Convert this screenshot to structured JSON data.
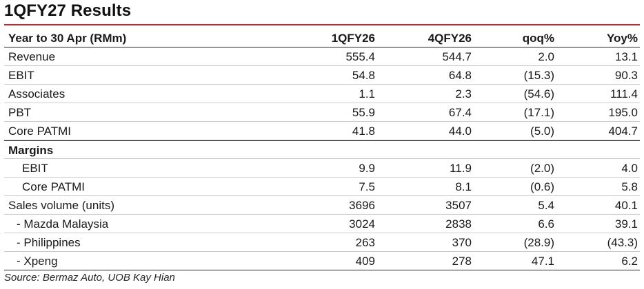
{
  "title": "1QFY27 Results",
  "header": {
    "label": "Year to 30 Apr (RMm)",
    "col1": "1QFY26",
    "col2": "4QFY26",
    "col3": "qoq%",
    "col4": "Yoy%"
  },
  "rows": [
    {
      "label": "Revenue",
      "v1": "555.4",
      "v2": "544.7",
      "v3": "2.0",
      "v4": "13.1"
    },
    {
      "label": "EBIT",
      "v1": "54.8",
      "v2": "64.8",
      "v3": "(15.3)",
      "v4": "90.3"
    },
    {
      "label": "Associates",
      "v1": "1.1",
      "v2": "2.3",
      "v3": "(54.6)",
      "v4": "111.4"
    },
    {
      "label": "PBT",
      "v1": "55.9",
      "v2": "67.4",
      "v3": "(17.1)",
      "v4": "195.0"
    },
    {
      "label": "Core PATMI",
      "v1": "41.8",
      "v2": "44.0",
      "v3": "(5.0)",
      "v4": "404.7"
    }
  ],
  "margins": {
    "label": "Margins",
    "rows": [
      {
        "label": "EBIT",
        "v1": "9.9",
        "v2": "11.9",
        "v3": "(2.0)",
        "v4": "4.0"
      },
      {
        "label": "Core PATMI",
        "v1": "7.5",
        "v2": "8.1",
        "v3": "(0.6)",
        "v4": "5.8"
      }
    ]
  },
  "sales": {
    "label": "Sales volume (units)",
    "v1": "3696",
    "v2": "3507",
    "v3": "5.4",
    "v4": "40.1",
    "rows": [
      {
        "label": "- Mazda Malaysia",
        "v1": "3024",
        "v2": "2838",
        "v3": "6.6",
        "v4": "39.1"
      },
      {
        "label": "- Philippines",
        "v1": "263",
        "v2": "370",
        "v3": "(28.9)",
        "v4": "(43.3)"
      },
      {
        "label": "- Xpeng",
        "v1": "409",
        "v2": "278",
        "v3": "47.1",
        "v4": "6.2"
      }
    ]
  },
  "source": "Source: Bermaz Auto, UOB Kay Hian"
}
